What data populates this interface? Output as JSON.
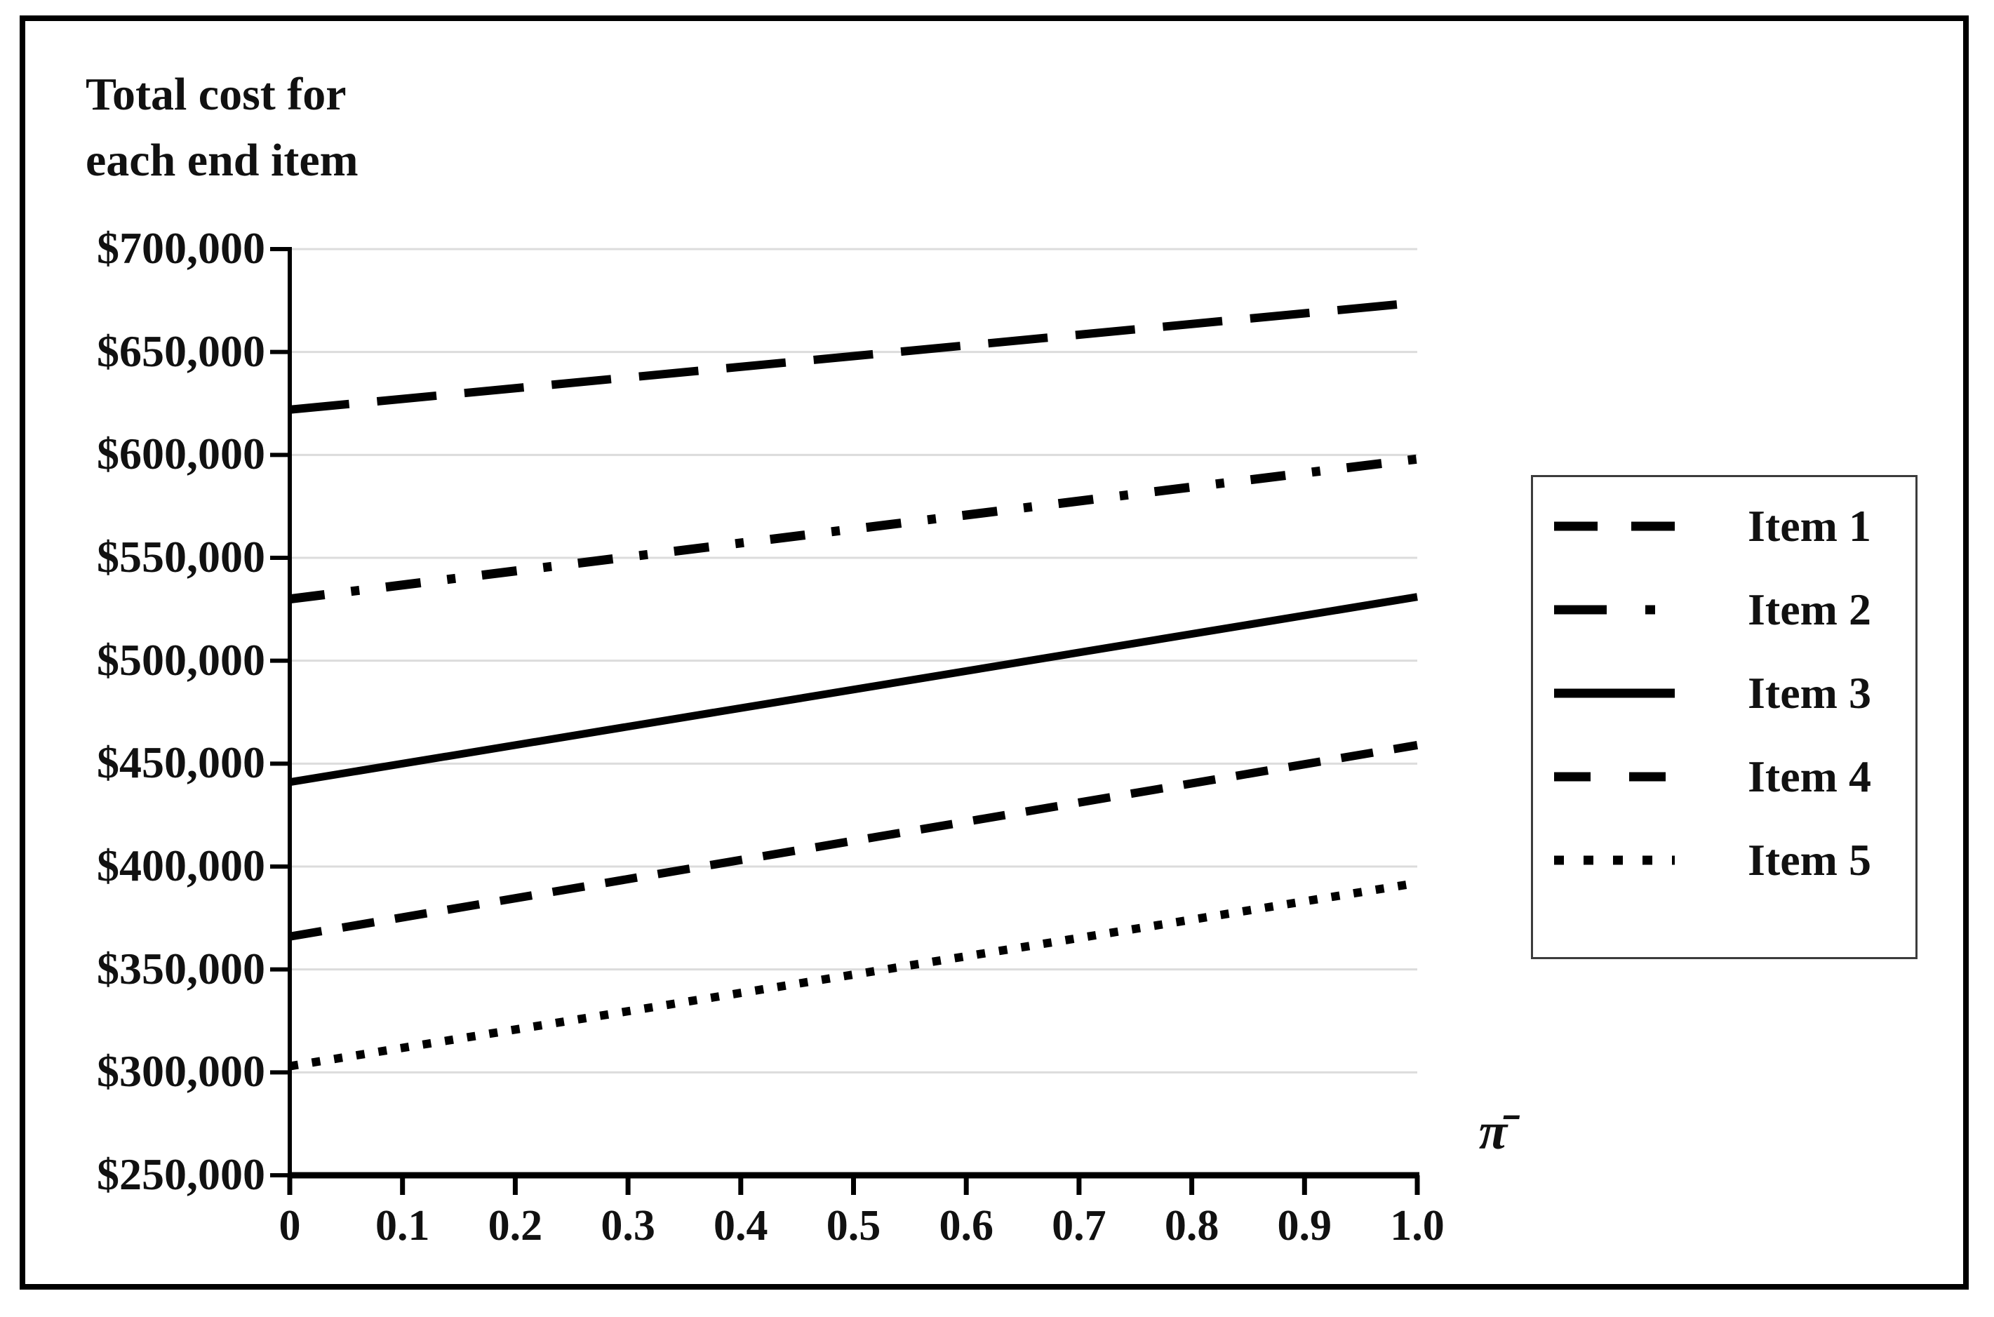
{
  "figure": {
    "title_lines": [
      "Total cost for",
      "each end item"
    ],
    "background_color": "#ffffff",
    "border_color": "#000000"
  },
  "chart_data": {
    "type": "line",
    "title": "Total cost for each end item",
    "xlabel": "π̄",
    "ylabel": "Total cost for each end item",
    "xlim": [
      0,
      1.0
    ],
    "ylim": [
      250000,
      700000
    ],
    "grid": "horizontal-gridlines",
    "gridline_color": "#dcdcdc",
    "axis_color": "#000000",
    "line_color": "#000000",
    "legend_position": "right-outside",
    "x_ticks": [
      0,
      0.1,
      0.2,
      0.3,
      0.4,
      0.5,
      0.6,
      0.7,
      0.8,
      0.9,
      1.0
    ],
    "x_tick_labels": [
      "0",
      "0.1",
      "0.2",
      "0.3",
      "0.4",
      "0.5",
      "0.6",
      "0.7",
      "0.8",
      "0.9",
      "1.0"
    ],
    "y_ticks": [
      250000,
      300000,
      350000,
      400000,
      450000,
      500000,
      550000,
      600000,
      650000,
      700000
    ],
    "y_tick_labels": [
      "$250,000",
      "$300,000",
      "$350,000",
      "$400,000",
      "$450,000",
      "$500,000",
      "$550,000",
      "$600,000",
      "$650,000",
      "$700,000"
    ],
    "x": [
      0,
      1.0
    ],
    "series": [
      {
        "name": "Item 1",
        "line_style": "long-dash",
        "color": "#000000",
        "values": [
          622000,
          674000
        ]
      },
      {
        "name": "Item 2",
        "line_style": "dash-dot",
        "color": "#000000",
        "values": [
          530000,
          598000
        ]
      },
      {
        "name": "Item 3",
        "line_style": "solid",
        "color": "#000000",
        "values": [
          441000,
          531000
        ]
      },
      {
        "name": "Item 4",
        "line_style": "dash",
        "color": "#000000",
        "values": [
          366000,
          459000
        ]
      },
      {
        "name": "Item 5",
        "line_style": "dotted",
        "color": "#000000",
        "values": [
          303000,
          392000
        ]
      }
    ]
  }
}
